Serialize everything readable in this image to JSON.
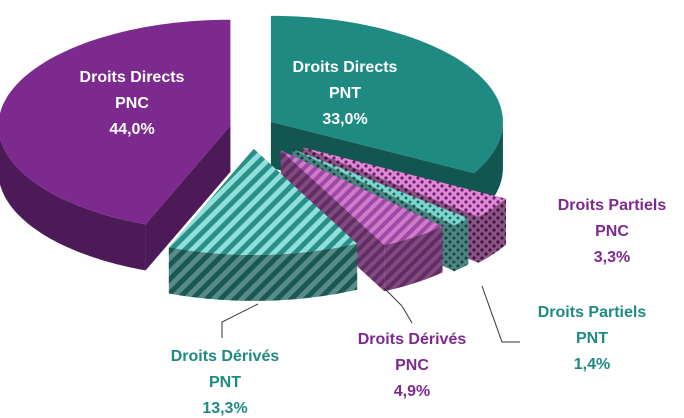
{
  "chart_data": {
    "type": "pie",
    "categories": [
      [
        "Droits Directs",
        "PNT"
      ],
      [
        "Droits Partiels",
        "PNC"
      ],
      [
        "Droits Partiels",
        "PNT"
      ],
      [
        "Droits Dérivés",
        "PNC"
      ],
      [
        "Droits Dérivés",
        "PNT"
      ],
      [
        "Droits Directs",
        "PNC"
      ]
    ],
    "values": [
      33.0,
      3.3,
      1.4,
      4.9,
      13.3,
      44.0
    ],
    "value_labels": [
      "33,0%",
      "3,3%",
      "1,4%",
      "4,9%",
      "13,3%",
      "44,0%"
    ],
    "colors": [
      "#1f8a82",
      "url(#dotsPink)",
      "url(#dotsTeal)",
      "url(#stripesPurple)",
      "url(#stripesTeal)",
      "#7d2a8e"
    ],
    "label_colors": [
      "#ffffff",
      "#7d2a8e",
      "#1f8a82",
      "#7d2a8e",
      "#1f8a82",
      "#ffffff"
    ]
  }
}
